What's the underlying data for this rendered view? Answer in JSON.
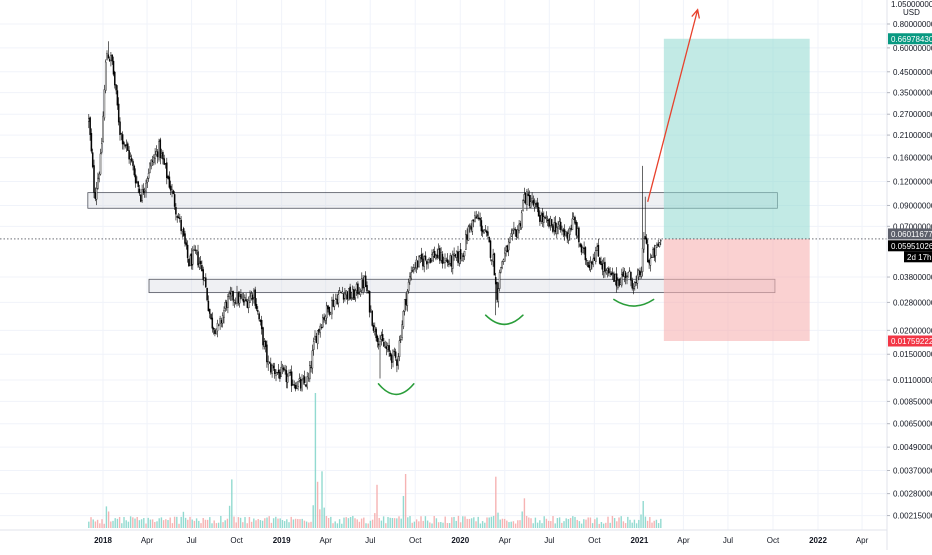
{
  "currency_label": "USD",
  "top_axis_value": "1.05000000",
  "countdown": "2d 17h",
  "colors": {
    "grid": "#f0f3fa",
    "axis_text": "#131722",
    "candle": "#000000",
    "zone_fill": "#d1d4dc",
    "zone_stroke": "#50535e",
    "profit_fill": "#8fd8cf",
    "loss_fill": "#f7b2b2",
    "arrow": "#e8412c",
    "curve": "#2a9d3a",
    "target_label": "#089981",
    "stop_label": "#f23645",
    "price_label": "#000000",
    "vol_up": "#7fd3c8",
    "vol_down": "#f5a6a6"
  },
  "chart_data": {
    "type": "candlestick",
    "title": "",
    "y_scale": "log",
    "ylim": [
      0.0016,
      1.05
    ],
    "xlim": [
      "2017-11-20",
      "2022-06-15"
    ],
    "legend": "none",
    "grid": true,
    "x_ticks": [
      {
        "date": "2018-01-01",
        "label": "2018",
        "bold": true
      },
      {
        "date": "2018-04-01",
        "label": "Apr"
      },
      {
        "date": "2018-07-01",
        "label": "Jul"
      },
      {
        "date": "2018-10-01",
        "label": "Oct"
      },
      {
        "date": "2019-01-01",
        "label": "2019",
        "bold": true
      },
      {
        "date": "2019-04-01",
        "label": "Apr"
      },
      {
        "date": "2019-07-01",
        "label": "Jul"
      },
      {
        "date": "2019-10-01",
        "label": "Oct"
      },
      {
        "date": "2020-01-01",
        "label": "2020",
        "bold": true
      },
      {
        "date": "2020-04-01",
        "label": "Apr"
      },
      {
        "date": "2020-07-01",
        "label": "Jul"
      },
      {
        "date": "2020-10-01",
        "label": "Oct"
      },
      {
        "date": "2021-01-01",
        "label": "2021",
        "bold": true
      },
      {
        "date": "2021-04-01",
        "label": "Apr"
      },
      {
        "date": "2021-07-01",
        "label": "Jul"
      },
      {
        "date": "2021-10-01",
        "label": "Oct"
      },
      {
        "date": "2022-01-01",
        "label": "2022",
        "bold": true
      },
      {
        "date": "2022-04-01",
        "label": "Apr"
      }
    ],
    "y_ticks": [
      {
        "value": 0.8,
        "label": "0.80000000"
      },
      {
        "value": 0.6,
        "label": "0.60000000"
      },
      {
        "value": 0.45,
        "label": "0.45000000"
      },
      {
        "value": 0.35,
        "label": "0.35000000"
      },
      {
        "value": 0.27,
        "label": "0.27000000"
      },
      {
        "value": 0.21,
        "label": "0.21000000"
      },
      {
        "value": 0.16,
        "label": "0.16000000"
      },
      {
        "value": 0.12,
        "label": "0.12000000"
      },
      {
        "value": 0.09,
        "label": "0.09000000"
      },
      {
        "value": 0.07,
        "label": "0.07000000"
      },
      {
        "value": 0.038,
        "label": "0.03800000"
      },
      {
        "value": 0.028,
        "label": "0.02800000"
      },
      {
        "value": 0.02,
        "label": "0.02000000"
      },
      {
        "value": 0.015,
        "label": "0.01500000"
      },
      {
        "value": 0.011,
        "label": "0.01100000"
      },
      {
        "value": 0.0085,
        "label": "0.00850000"
      },
      {
        "value": 0.0065,
        "label": "0.00650000"
      },
      {
        "value": 0.0049,
        "label": "0.00490000"
      },
      {
        "value": 0.0037,
        "label": "0.00370000"
      },
      {
        "value": 0.0028,
        "label": "0.00280000"
      },
      {
        "value": 0.00215,
        "label": "0.00215000"
      }
    ],
    "price_anchors": [
      {
        "date": "2017-12-03",
        "price": 0.25
      },
      {
        "date": "2017-12-15",
        "price": 0.1
      },
      {
        "date": "2017-12-28",
        "price": 0.16
      },
      {
        "date": "2018-01-08",
        "price": 0.58
      },
      {
        "date": "2018-01-20",
        "price": 0.5
      },
      {
        "date": "2018-02-05",
        "price": 0.22
      },
      {
        "date": "2018-02-25",
        "price": 0.16
      },
      {
        "date": "2018-03-20",
        "price": 0.1
      },
      {
        "date": "2018-04-05",
        "price": 0.14
      },
      {
        "date": "2018-04-25",
        "price": 0.18
      },
      {
        "date": "2018-05-20",
        "price": 0.11
      },
      {
        "date": "2018-06-10",
        "price": 0.068
      },
      {
        "date": "2018-06-25",
        "price": 0.045
      },
      {
        "date": "2018-07-10",
        "price": 0.05
      },
      {
        "date": "2018-07-25",
        "price": 0.04
      },
      {
        "date": "2018-08-10",
        "price": 0.022
      },
      {
        "date": "2018-08-25",
        "price": 0.02
      },
      {
        "date": "2018-09-10",
        "price": 0.028
      },
      {
        "date": "2018-09-25",
        "price": 0.03
      },
      {
        "date": "2018-10-20",
        "price": 0.028
      },
      {
        "date": "2018-11-05",
        "price": 0.032
      },
      {
        "date": "2018-11-20",
        "price": 0.02
      },
      {
        "date": "2018-12-05",
        "price": 0.013
      },
      {
        "date": "2018-12-25",
        "price": 0.012
      },
      {
        "date": "2019-01-20",
        "price": 0.011
      },
      {
        "date": "2019-02-10",
        "price": 0.0102
      },
      {
        "date": "2019-02-25",
        "price": 0.011
      },
      {
        "date": "2019-03-10",
        "price": 0.018
      },
      {
        "date": "2019-03-25",
        "price": 0.023
      },
      {
        "date": "2019-04-15",
        "price": 0.028
      },
      {
        "date": "2019-05-05",
        "price": 0.032
      },
      {
        "date": "2019-05-25",
        "price": 0.03
      },
      {
        "date": "2019-06-20",
        "price": 0.036
      },
      {
        "date": "2019-07-10",
        "price": 0.02
      },
      {
        "date": "2019-07-25",
        "price": 0.017
      },
      {
        "date": "2019-08-10",
        "price": 0.015
      },
      {
        "date": "2019-08-25",
        "price": 0.014
      },
      {
        "date": "2019-09-10",
        "price": 0.028
      },
      {
        "date": "2019-09-25",
        "price": 0.043
      },
      {
        "date": "2019-10-20",
        "price": 0.047
      },
      {
        "date": "2019-11-10",
        "price": 0.05
      },
      {
        "date": "2019-12-10",
        "price": 0.045
      },
      {
        "date": "2020-01-05",
        "price": 0.05
      },
      {
        "date": "2020-01-20",
        "price": 0.07
      },
      {
        "date": "2020-02-05",
        "price": 0.078
      },
      {
        "date": "2020-02-25",
        "price": 0.06
      },
      {
        "date": "2020-03-10",
        "price": 0.045
      },
      {
        "date": "2020-03-15",
        "price": 0.03
      },
      {
        "date": "2020-03-25",
        "price": 0.045
      },
      {
        "date": "2020-04-15",
        "price": 0.06
      },
      {
        "date": "2020-05-01",
        "price": 0.07
      },
      {
        "date": "2020-05-10",
        "price": 0.1
      },
      {
        "date": "2020-05-25",
        "price": 0.095
      },
      {
        "date": "2020-06-10",
        "price": 0.08
      },
      {
        "date": "2020-06-25",
        "price": 0.072
      },
      {
        "date": "2020-07-15",
        "price": 0.07
      },
      {
        "date": "2020-08-05",
        "price": 0.063
      },
      {
        "date": "2020-08-20",
        "price": 0.075
      },
      {
        "date": "2020-09-05",
        "price": 0.052
      },
      {
        "date": "2020-09-20",
        "price": 0.045
      },
      {
        "date": "2020-10-05",
        "price": 0.052
      },
      {
        "date": "2020-10-25",
        "price": 0.04
      },
      {
        "date": "2020-11-15",
        "price": 0.036
      },
      {
        "date": "2020-12-05",
        "price": 0.04
      },
      {
        "date": "2020-12-25",
        "price": 0.034
      },
      {
        "date": "2021-01-05",
        "price": 0.042
      },
      {
        "date": "2021-01-12",
        "price": 0.065
      },
      {
        "date": "2021-01-20",
        "price": 0.045
      },
      {
        "date": "2021-01-31",
        "price": 0.05
      },
      {
        "date": "2021-02-15",
        "price": 0.06
      }
    ],
    "spikes": [
      {
        "date": "2018-01-12",
        "high": 0.65
      },
      {
        "date": "2019-07-20",
        "low": 0.0112
      },
      {
        "date": "2020-03-13",
        "low": 0.024
      },
      {
        "date": "2021-01-07",
        "high": 0.145
      },
      {
        "date": "2021-01-12",
        "high": 0.1
      }
    ],
    "zones": [
      {
        "start": "2017-12-01",
        "end": "2021-10-10",
        "top": 0.105,
        "bottom": 0.087
      },
      {
        "start": "2018-04-05",
        "end": "2021-10-05",
        "top": 0.037,
        "bottom": 0.0315
      }
    ],
    "position": {
      "type": "long",
      "start": "2021-02-20",
      "end": "2021-12-15",
      "entry": 0.06011677,
      "target": 0.6697843,
      "stop": 0.01759222
    },
    "current_price": 0.05951026,
    "price_labels": [
      {
        "id": "target",
        "value": 0.6697843,
        "label": "0.66978430"
      },
      {
        "id": "entry",
        "value": 0.06011677,
        "label": "0.06011677"
      },
      {
        "id": "current",
        "value": 0.05951026,
        "label": "0.05951026"
      },
      {
        "id": "stop",
        "value": 0.01759222,
        "label": "0.01759222"
      }
    ],
    "arrow": {
      "from_date": "2021-01-18",
      "from_price": 0.094,
      "to_date": "2021-04-30",
      "to_price": 0.95
    },
    "curves": [
      {
        "start": "2019-07-18",
        "end": "2019-09-28",
        "price": 0.0105,
        "depth": 0.00125
      },
      {
        "start": "2020-02-22",
        "end": "2020-05-08",
        "price": 0.024,
        "depth": 0.0025
      },
      {
        "start": "2020-11-10",
        "end": "2021-01-30",
        "price": 0.029,
        "depth": 0.0022
      }
    ],
    "volume": {
      "max_value": 1,
      "bursts": [
        {
          "date": "2018-01-10",
          "value": 0.16
        },
        {
          "date": "2018-06-15",
          "value": 0.12
        },
        {
          "date": "2018-09-20",
          "value": 0.36
        },
        {
          "date": "2019-03-12",
          "value": 1.0
        },
        {
          "date": "2019-03-25",
          "value": 0.42
        },
        {
          "date": "2019-07-15",
          "value": 0.32
        },
        {
          "date": "2019-09-10",
          "value": 0.4
        },
        {
          "date": "2020-03-14",
          "value": 0.38
        },
        {
          "date": "2020-05-10",
          "value": 0.22
        },
        {
          "date": "2021-01-08",
          "value": 0.2
        }
      ]
    }
  }
}
